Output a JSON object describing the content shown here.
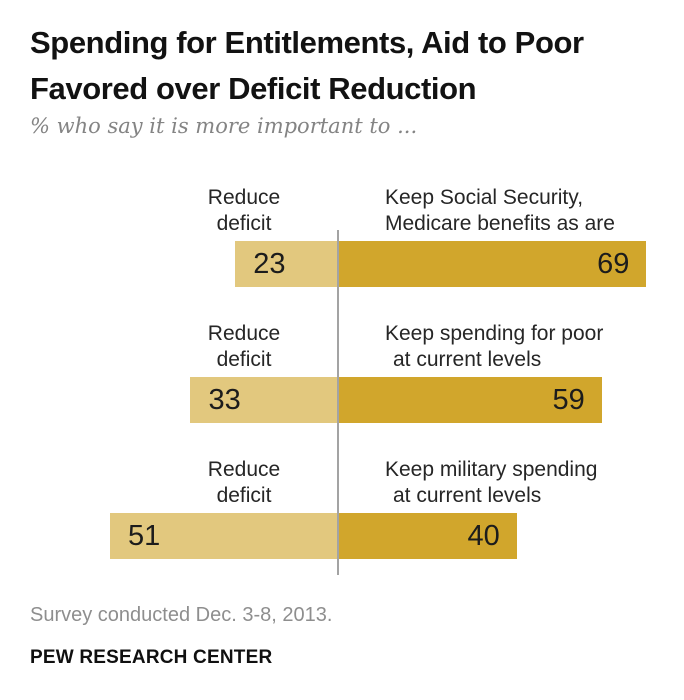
{
  "header": {
    "title_line1": "Spending for Entitlements, Aid to Poor",
    "title_line2": "Favored over Deficit Reduction",
    "subtitle": "% who say it is more important to ..."
  },
  "chart_data": {
    "type": "bar",
    "variant": "diverging-horizontal",
    "unit": "percent",
    "title": "Spending for Entitlements, Aid to Poor Favored over Deficit Reduction",
    "subtitle": "% who say it is more important to ...",
    "axis": "center vertical baseline, no ticks, no gridlines, no legend",
    "xlim": [
      -51,
      69
    ],
    "rows": [
      {
        "left_label": [
          "Reduce",
          "deficit"
        ],
        "left_value": 23,
        "right_label": [
          "Keep Social Security,",
          "Medicare benefits as are"
        ],
        "right_value": 69
      },
      {
        "left_label": [
          "Reduce",
          "deficit"
        ],
        "left_value": 33,
        "right_label": [
          "Keep spending for poor",
          "at current levels"
        ],
        "right_value": 59
      },
      {
        "left_label": [
          "Reduce",
          "deficit"
        ],
        "left_value": 51,
        "right_label": [
          "Keep military spending",
          "at current levels"
        ],
        "right_value": 40
      }
    ],
    "colors": {
      "left_bar": "#e2c87e",
      "right_bar": "#d1a62c",
      "axis_line": "#a3a3a3"
    }
  },
  "footer": {
    "note": "Survey conducted Dec. 3-8, 2013.",
    "source": "PEW RESEARCH CENTER"
  }
}
